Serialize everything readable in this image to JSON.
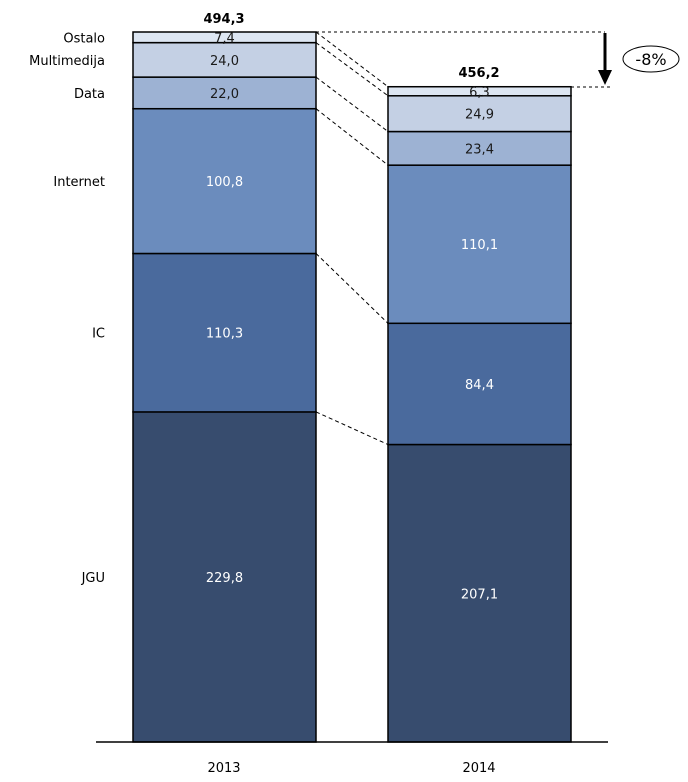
{
  "chart_data": {
    "type": "bar",
    "stacked": true,
    "categories": [
      "2013",
      "2014"
    ],
    "series": [
      {
        "name": "JGU",
        "values": [
          229.8,
          207.1
        ],
        "labels": [
          "229,8",
          "207,1"
        ],
        "color": "#374c6e",
        "text_color": "#ffffff"
      },
      {
        "name": "IC",
        "values": [
          110.3,
          84.4
        ],
        "labels": [
          "110,3",
          "84,4"
        ],
        "color": "#4a6a9d",
        "text_color": "#ffffff"
      },
      {
        "name": "Internet",
        "values": [
          100.8,
          110.1
        ],
        "labels": [
          "100,8",
          "110,1"
        ],
        "color": "#6b8cbd",
        "text_color": "#ffffff"
      },
      {
        "name": "Data",
        "values": [
          22.0,
          23.4
        ],
        "labels": [
          "22,0",
          "23,4"
        ],
        "color": "#9db2d3",
        "text_color": "#1a1a1a"
      },
      {
        "name": "Multimedija",
        "values": [
          24.0,
          24.9
        ],
        "labels": [
          "24,0",
          "24,9"
        ],
        "color": "#c4d0e4",
        "text_color": "#1a1a1a"
      },
      {
        "name": "Ostalo",
        "values": [
          7.4,
          6.3
        ],
        "labels": [
          "7,4",
          "6,3"
        ],
        "color": "#dde6f2",
        "text_color": "#1a1a1a"
      }
    ],
    "totals": [
      494.3,
      456.2
    ],
    "total_labels": [
      "494,3",
      "456,2"
    ],
    "change_label": "-8%",
    "ylim": [
      0,
      494.3
    ],
    "grid": false,
    "legend": "left, labels beside first bar"
  }
}
